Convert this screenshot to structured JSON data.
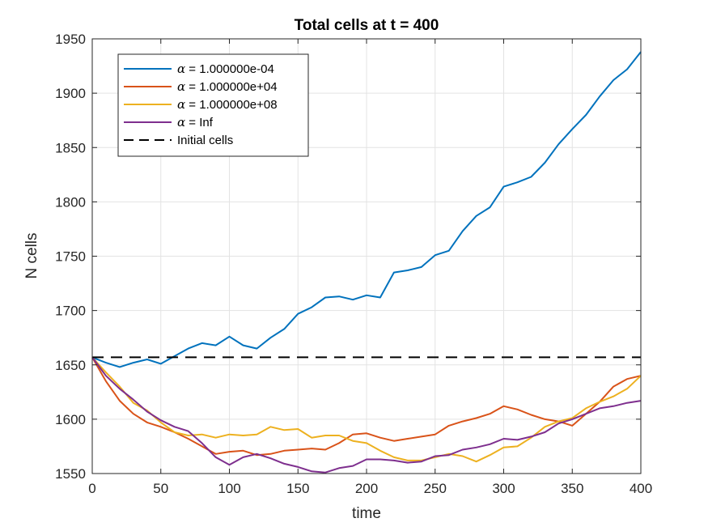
{
  "chart_data": {
    "type": "line",
    "title": "Total cells at t = 400",
    "xlabel": "time",
    "ylabel": "N cells",
    "xlim": [
      0,
      400
    ],
    "ylim": [
      1550,
      1950
    ],
    "xticks": [
      0,
      50,
      100,
      150,
      200,
      250,
      300,
      350,
      400
    ],
    "yticks": [
      1550,
      1600,
      1650,
      1700,
      1750,
      1800,
      1850,
      1900,
      1950
    ],
    "grid": true,
    "legend_position": "top-left",
    "legend_symbol": "α",
    "series": [
      {
        "name": "α = 1.000000e-04",
        "legend_value": " = 1.000000e-04",
        "color": "#0072BD",
        "x": [
          0,
          10,
          20,
          30,
          40,
          50,
          60,
          70,
          80,
          90,
          100,
          110,
          120,
          130,
          140,
          150,
          160,
          170,
          180,
          190,
          200,
          210,
          220,
          230,
          240,
          250,
          260,
          270,
          280,
          290,
          300,
          310,
          320,
          330,
          340,
          350,
          360,
          370,
          380,
          390,
          400
        ],
        "y": [
          1657,
          1652,
          1648,
          1652,
          1655,
          1651,
          1658,
          1665,
          1670,
          1668,
          1676,
          1668,
          1665,
          1675,
          1683,
          1697,
          1703,
          1712,
          1713,
          1710,
          1714,
          1712,
          1735,
          1737,
          1740,
          1751,
          1755,
          1773,
          1787,
          1795,
          1814,
          1818,
          1823,
          1836,
          1853,
          1867,
          1880,
          1897,
          1912,
          1922,
          1938
        ]
      },
      {
        "name": "α = 1.000000e+04",
        "legend_value": " = 1.000000e+04",
        "color": "#D95319",
        "x": [
          0,
          10,
          20,
          30,
          40,
          50,
          60,
          70,
          80,
          90,
          100,
          110,
          120,
          130,
          140,
          150,
          160,
          170,
          180,
          190,
          200,
          210,
          220,
          230,
          240,
          250,
          260,
          270,
          280,
          290,
          300,
          310,
          320,
          330,
          340,
          350,
          360,
          370,
          380,
          390,
          400
        ],
        "y": [
          1657,
          1635,
          1617,
          1605,
          1597,
          1593,
          1588,
          1582,
          1575,
          1568,
          1570,
          1571,
          1567,
          1568,
          1571,
          1572,
          1573,
          1572,
          1578,
          1586,
          1587,
          1583,
          1580,
          1582,
          1584,
          1586,
          1594,
          1598,
          1601,
          1605,
          1612,
          1609,
          1604,
          1600,
          1598,
          1594,
          1605,
          1616,
          1630,
          1637,
          1640
        ]
      },
      {
        "name": "α = 1.000000e+08",
        "legend_value": " = 1.000000e+08",
        "color": "#EDB120",
        "x": [
          0,
          10,
          20,
          30,
          40,
          50,
          60,
          70,
          80,
          90,
          100,
          110,
          120,
          130,
          140,
          150,
          160,
          170,
          180,
          190,
          200,
          210,
          220,
          230,
          240,
          250,
          260,
          270,
          280,
          290,
          300,
          310,
          320,
          330,
          340,
          350,
          360,
          370,
          380,
          390,
          400
        ],
        "y": [
          1657,
          1643,
          1630,
          1615,
          1608,
          1597,
          1588,
          1585,
          1586,
          1583,
          1586,
          1585,
          1586,
          1593,
          1590,
          1591,
          1583,
          1585,
          1585,
          1580,
          1578,
          1571,
          1565,
          1562,
          1562,
          1565,
          1568,
          1566,
          1561,
          1567,
          1574,
          1575,
          1583,
          1593,
          1598,
          1601,
          1610,
          1616,
          1621,
          1628,
          1640
        ]
      },
      {
        "name": "α = Inf",
        "legend_value": " = Inf",
        "color": "#7E2F8E",
        "x": [
          0,
          10,
          20,
          30,
          40,
          50,
          60,
          70,
          80,
          90,
          100,
          110,
          120,
          130,
          140,
          150,
          160,
          170,
          180,
          190,
          200,
          210,
          220,
          230,
          240,
          250,
          260,
          270,
          280,
          290,
          300,
          310,
          320,
          330,
          340,
          350,
          360,
          370,
          380,
          390,
          400
        ],
        "y": [
          1657,
          1640,
          1628,
          1618,
          1607,
          1599,
          1593,
          1589,
          1578,
          1565,
          1558,
          1565,
          1568,
          1564,
          1559,
          1556,
          1552,
          1551,
          1555,
          1557,
          1563,
          1563,
          1562,
          1560,
          1561,
          1566,
          1567,
          1572,
          1574,
          1577,
          1582,
          1581,
          1584,
          1588,
          1596,
          1600,
          1605,
          1610,
          1612,
          1615,
          1617
        ]
      }
    ],
    "reference_line": {
      "name": "Initial cells",
      "y": 1657,
      "color": "#000000",
      "style": "dashed"
    }
  }
}
